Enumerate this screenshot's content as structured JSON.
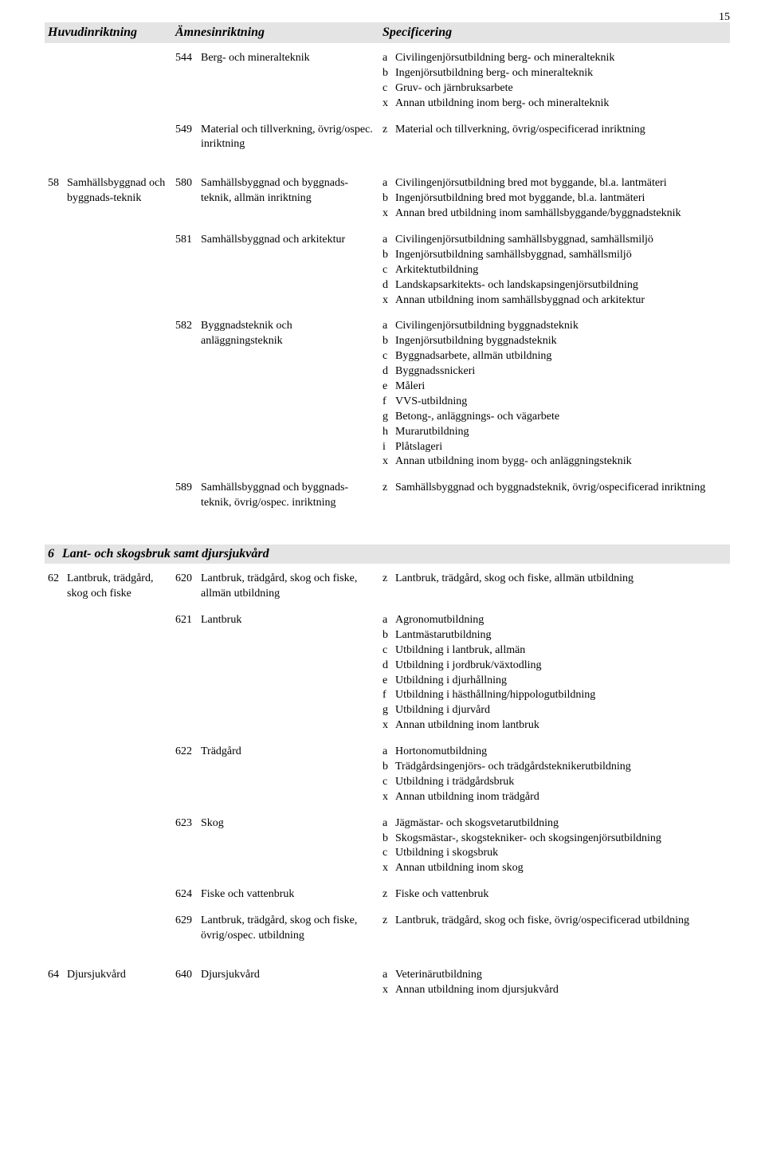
{
  "page_number": "15",
  "header": {
    "c1": "Huvudinriktning",
    "c2": "Ämnesinriktning",
    "c3": "Specificering"
  },
  "rows": [
    {
      "col1": null,
      "subs": [
        {
          "code": "544",
          "label": "Berg- och mineralteknik",
          "specs": [
            {
              "l": "a",
              "t": "Civilingenjörsutbildning berg- och mineralteknik"
            },
            {
              "l": "b",
              "t": "Ingenjörsutbildning berg- och mineralteknik"
            },
            {
              "l": "c",
              "t": "Gruv- och järnbruksarbete"
            },
            {
              "l": "x",
              "t": "Annan utbildning inom berg- och mineralteknik"
            }
          ]
        },
        {
          "code": "549",
          "label": "Material och tillverkning, övrig/ospec. inriktning",
          "specs": [
            {
              "l": "z",
              "t": "Material och tillverkning, övrig/ospecificerad inriktning"
            }
          ]
        }
      ]
    },
    {
      "col1": {
        "code": "58",
        "label": "Samhällsbyggnad och byggnads-teknik"
      },
      "subs": [
        {
          "code": "580",
          "label": "Samhällsbyggnad och byggnads-teknik, allmän inriktning",
          "specs": [
            {
              "l": "a",
              "t": "Civilingenjörsutbildning bred mot byggande, bl.a. lantmäteri"
            },
            {
              "l": "b",
              "t": "Ingenjörsutbildning bred mot byggande, bl.a. lantmäteri"
            },
            {
              "l": "x",
              "t": "Annan bred utbildning inom samhällsbyggande/byggnadsteknik"
            }
          ]
        },
        {
          "code": "581",
          "label": "Samhällsbyggnad och arkitektur",
          "specs": [
            {
              "l": "a",
              "t": "Civilingenjörsutbildning samhällsbyggnad, samhällsmiljö"
            },
            {
              "l": "b",
              "t": "Ingenjörsutbildning samhällsbyggnad, samhällsmiljö"
            },
            {
              "l": "c",
              "t": "Arkitektutbildning"
            },
            {
              "l": "d",
              "t": "Landskapsarkitekts- och landskapsingenjörsutbildning"
            },
            {
              "l": "x",
              "t": "Annan utbildning inom samhällsbyggnad och arkitektur"
            }
          ]
        },
        {
          "code": "582",
          "label": "Byggnadsteknik och anläggningsteknik",
          "specs": [
            {
              "l": "a",
              "t": "Civilingenjörsutbildning byggnadsteknik"
            },
            {
              "l": "b",
              "t": "Ingenjörsutbildning byggnadsteknik"
            },
            {
              "l": "c",
              "t": "Byggnadsarbete, allmän utbildning"
            },
            {
              "l": "d",
              "t": "Byggnadssnickeri"
            },
            {
              "l": "e",
              "t": "Måleri"
            },
            {
              "l": "f",
              "t": "VVS-utbildning"
            },
            {
              "l": "g",
              "t": "Betong-, anläggnings- och vägarbete"
            },
            {
              "l": "h",
              "t": "Murarutbildning"
            },
            {
              "l": "i",
              "t": "Plåtslageri"
            },
            {
              "l": "x",
              "t": "Annan utbildning inom bygg- och anläggningsteknik"
            }
          ]
        },
        {
          "code": "589",
          "label": "Samhällsbyggnad och byggnads-teknik, övrig/ospec. inriktning",
          "specs": [
            {
              "l": "z",
              "t": "Samhällsbyggnad och byggnadsteknik, övrig/ospecificerad inriktning"
            }
          ]
        }
      ]
    }
  ],
  "section6": {
    "num": "6",
    "title": "Lant- och skogsbruk samt djursjukvård",
    "rows": [
      {
        "col1": {
          "code": "62",
          "label": "Lantbruk, trädgård, skog och fiske"
        },
        "subs": [
          {
            "code": "620",
            "label": "Lantbruk, trädgård, skog och fiske, allmän utbildning",
            "specs": [
              {
                "l": "z",
                "t": "Lantbruk, trädgård, skog och fiske, allmän utbildning"
              }
            ]
          },
          {
            "code": "621",
            "label": "Lantbruk",
            "specs": [
              {
                "l": "a",
                "t": "Agronomutbildning"
              },
              {
                "l": "b",
                "t": "Lantmästarutbildning"
              },
              {
                "l": "c",
                "t": "Utbildning i lantbruk, allmän"
              },
              {
                "l": "d",
                "t": "Utbildning i jordbruk/växtodling"
              },
              {
                "l": "e",
                "t": "Utbildning i djurhållning"
              },
              {
                "l": "f",
                "t": "Utbildning i hästhållning/hippologutbildning"
              },
              {
                "l": "g",
                "t": "Utbildning i djurvård"
              },
              {
                "l": "x",
                "t": "Annan utbildning inom lantbruk"
              }
            ]
          },
          {
            "code": "622",
            "label": "Trädgård",
            "specs": [
              {
                "l": "a",
                "t": "Hortonomutbildning"
              },
              {
                "l": "b",
                "t": "Trädgårdsingenjörs- och trädgårdsteknikerutbildning"
              },
              {
                "l": "c",
                "t": "Utbildning i trädgårdsbruk"
              },
              {
                "l": "x",
                "t": "Annan utbildning inom trädgård"
              }
            ]
          },
          {
            "code": "623",
            "label": "Skog",
            "specs": [
              {
                "l": "a",
                "t": "Jägmästar- och skogsvetarutbildning"
              },
              {
                "l": "b",
                "t": "Skogsmästar-, skogstekniker- och skogsingenjörsutbildning"
              },
              {
                "l": "c",
                "t": "Utbildning i skogsbruk"
              },
              {
                "l": "x",
                "t": "Annan utbildning inom skog"
              }
            ]
          },
          {
            "code": "624",
            "label": "Fiske och vattenbruk",
            "specs": [
              {
                "l": "z",
                "t": "Fiske och vattenbruk"
              }
            ]
          },
          {
            "code": "629",
            "label": "Lantbruk, trädgård, skog och fiske, övrig/ospec. utbildning",
            "specs": [
              {
                "l": "z",
                "t": "Lantbruk, trädgård, skog och fiske, övrig/ospecificerad utbildning"
              }
            ]
          }
        ]
      },
      {
        "col1": {
          "code": "64",
          "label": "Djursjukvård"
        },
        "subs": [
          {
            "code": "640",
            "label": "Djursjukvård",
            "specs": [
              {
                "l": "a",
                "t": "Veterinärutbildning"
              },
              {
                "l": "x",
                "t": "Annan utbildning inom djursjukvård"
              }
            ]
          }
        ]
      }
    ]
  }
}
